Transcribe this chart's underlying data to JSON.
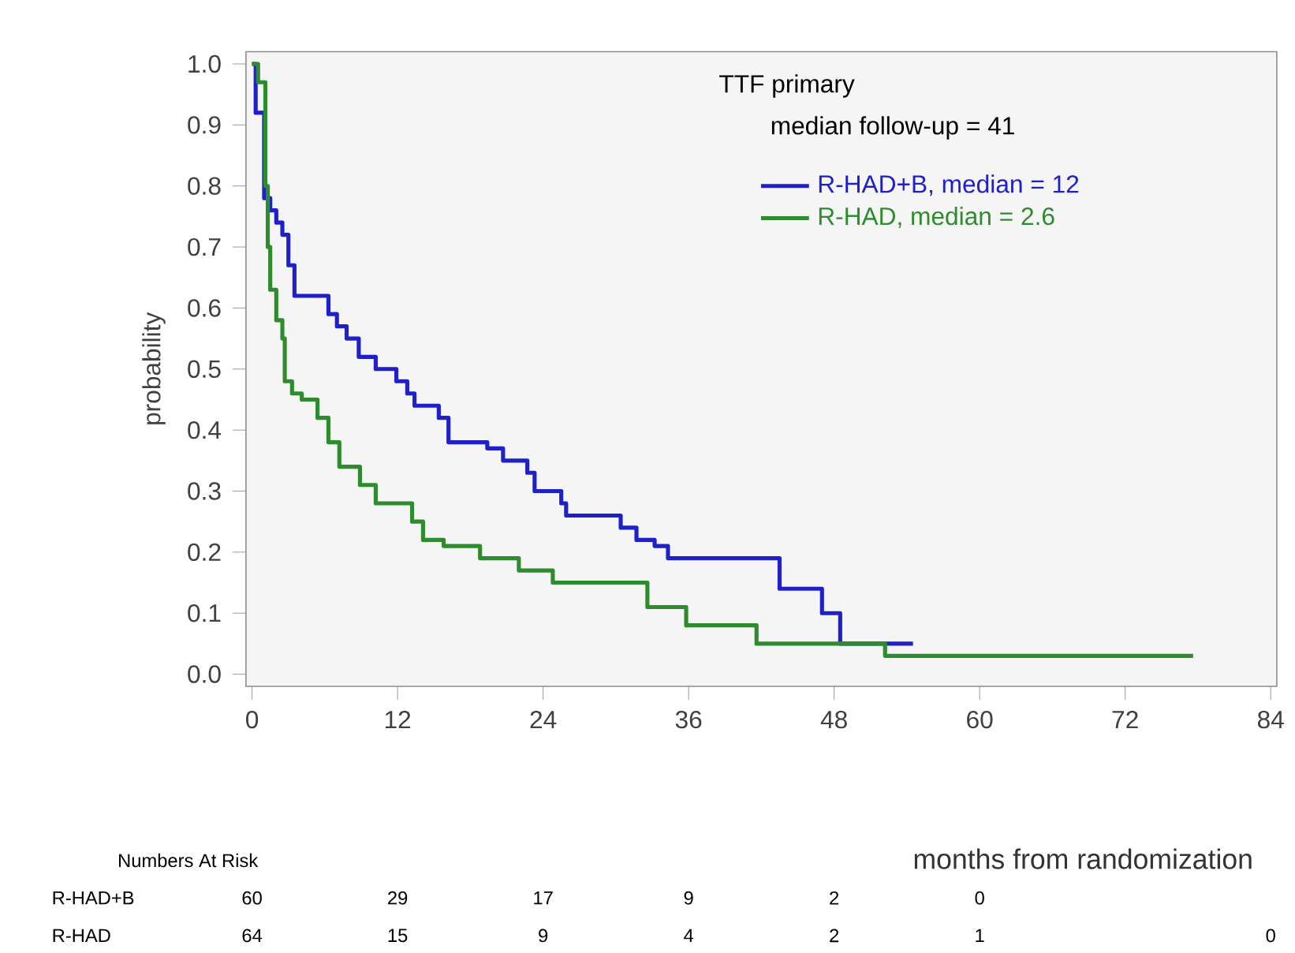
{
  "chart_data": {
    "type": "step",
    "xlabel": "months from randomization",
    "ylabel": "probability",
    "legend_title": "TTF primary",
    "annotations": [
      "median follow-up = 41",
      "Numbers At Risk",
      "R-HAD+B",
      "60",
      "29",
      "17",
      "9",
      "2",
      "0",
      "R-HAD",
      "64",
      "15",
      "9",
      "4",
      "2",
      "1",
      "0"
    ],
    "xlim": [
      -0.5,
      84.5
    ],
    "ylim": [
      -0.02,
      1.02
    ],
    "xticks": [
      0,
      12,
      24,
      36,
      48,
      60,
      72,
      84
    ],
    "yticks": [
      {
        "value": 0.0,
        "label": "0.0"
      },
      0.1,
      0.2,
      0.3,
      0.4,
      0.5,
      0.6,
      0.7,
      0.8,
      0.9,
      {
        "value": 1.0,
        "label": "1.0"
      }
    ],
    "legend": "top right",
    "series": [
      {
        "name": "R-HAD+B, median =  12",
        "color": "#2020c8",
        "x": [
          0,
          0.3,
          1,
          1.5,
          2,
          2.5,
          3,
          3.5,
          6.3,
          7,
          7.8,
          8.8,
          10.2,
          11.9,
          12.8,
          13.4,
          15.4,
          16.2,
          19.4,
          20.7,
          22.7,
          23.3,
          25.5,
          25.9,
          30.4,
          31.7,
          33.2,
          34.3,
          43.5,
          47,
          48.5,
          54.5
        ],
        "values": [
          1.0,
          0.92,
          0.78,
          0.76,
          0.74,
          0.72,
          0.67,
          0.62,
          0.59,
          0.57,
          0.55,
          0.52,
          0.5,
          0.48,
          0.46,
          0.44,
          0.42,
          0.38,
          0.37,
          0.35,
          0.33,
          0.3,
          0.28,
          0.26,
          0.24,
          0.22,
          0.21,
          0.19,
          0.14,
          0.1,
          0.05,
          0.05
        ]
      },
      {
        "name": "R-HAD, median = 2.6",
        "color": "#2e8b2e",
        "x": [
          0,
          0.5,
          1.1,
          1.3,
          1.5,
          2.0,
          2.5,
          2.7,
          3.3,
          4.1,
          5.4,
          6.3,
          7.2,
          8.9,
          10.2,
          13.2,
          14.1,
          15.8,
          18.8,
          22,
          24.8,
          32.6,
          35.8,
          41.6,
          52.2,
          77.6
        ],
        "values": [
          1.0,
          0.97,
          0.8,
          0.7,
          0.63,
          0.58,
          0.55,
          0.48,
          0.46,
          0.45,
          0.42,
          0.38,
          0.34,
          0.31,
          0.28,
          0.25,
          0.22,
          0.21,
          0.19,
          0.17,
          0.15,
          0.11,
          0.08,
          0.05,
          0.03,
          0.03
        ]
      }
    ]
  }
}
